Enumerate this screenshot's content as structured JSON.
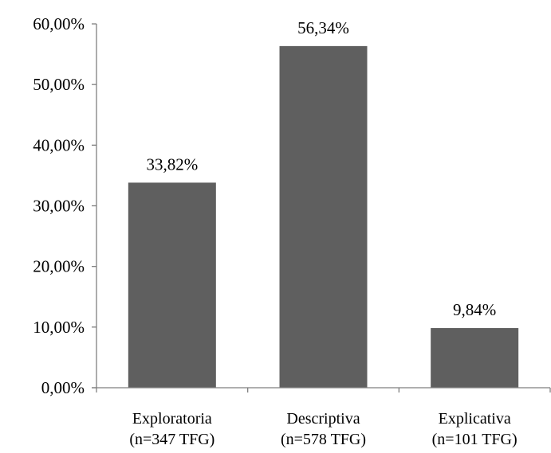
{
  "chart_data": {
    "type": "bar",
    "categories": [
      [
        "Exploratoria",
        "(n=347 TFG)"
      ],
      [
        "Descriptiva",
        "(n=578 TFG)"
      ],
      [
        "Explicativa",
        "(n=101 TFG)"
      ]
    ],
    "values": [
      33.82,
      56.34,
      9.84
    ],
    "data_labels": [
      "33,82%",
      "56,34%",
      "9,84%"
    ],
    "ylim": [
      0,
      60
    ],
    "yticks": [
      0,
      10,
      20,
      30,
      40,
      50,
      60
    ],
    "ytick_labels": [
      "0,00%",
      "10,00%",
      "20,00%",
      "30,00%",
      "40,00%",
      "50,00%",
      "60,00%"
    ],
    "title": "",
    "xlabel": "",
    "ylabel": "",
    "grid": false,
    "legend": "none",
    "bar_color": "#5f5f5f",
    "axis_color": "#7f7f7f"
  }
}
